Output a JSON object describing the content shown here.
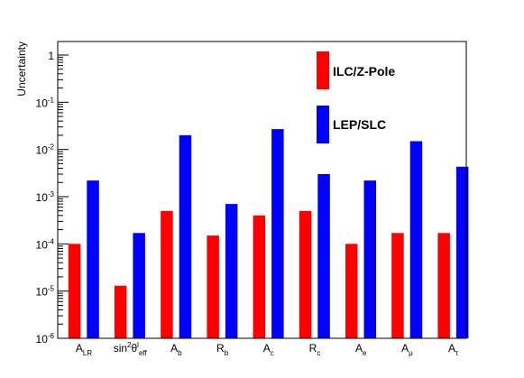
{
  "chart_data": {
    "type": "bar",
    "ylabel": "Uncertainty",
    "yscale": "log",
    "ylim": [
      1e-06,
      1
    ],
    "y_tick_labels": [
      {
        "base": "10",
        "exp": "-6"
      },
      {
        "base": "10",
        "exp": "-5"
      },
      {
        "base": "10",
        "exp": "-4"
      },
      {
        "base": "10",
        "exp": "-3"
      },
      {
        "base": "10",
        "exp": "-2"
      },
      {
        "base": "10",
        "exp": "-1"
      },
      {
        "base": "1",
        "exp": ""
      }
    ],
    "categories": [
      {
        "main": "A",
        "sup": "",
        "sub": "LR"
      },
      {
        "main": "sin",
        "sup": "2",
        "mid": "θ",
        "sup2": "l",
        "sub": "eff"
      },
      {
        "main": "A",
        "sup": "",
        "sub": "b"
      },
      {
        "main": "R",
        "sup": "",
        "sub": "b"
      },
      {
        "main": "A",
        "sup": "",
        "sub": "c"
      },
      {
        "main": "R",
        "sup": "",
        "sub": "c"
      },
      {
        "main": "A",
        "sup": "",
        "sub": "e"
      },
      {
        "main": "A",
        "sup": "",
        "sub": "μ"
      },
      {
        "main": "A",
        "sup": "",
        "sub": "τ"
      }
    ],
    "series": [
      {
        "name": "ILC/Z-Pole",
        "color": "#ff0000",
        "values": [
          0.0001,
          1.3e-05,
          0.0005,
          0.00015,
          0.0004,
          0.0005,
          0.0001,
          0.00017,
          0.00017
        ]
      },
      {
        "name": "LEP/SLC",
        "color": "#0000ff",
        "values": [
          0.0022,
          0.00017,
          0.02,
          0.0007,
          0.027,
          0.003,
          0.0022,
          0.015,
          0.0043
        ]
      }
    ],
    "legend_position": "top-right",
    "grid": false
  }
}
